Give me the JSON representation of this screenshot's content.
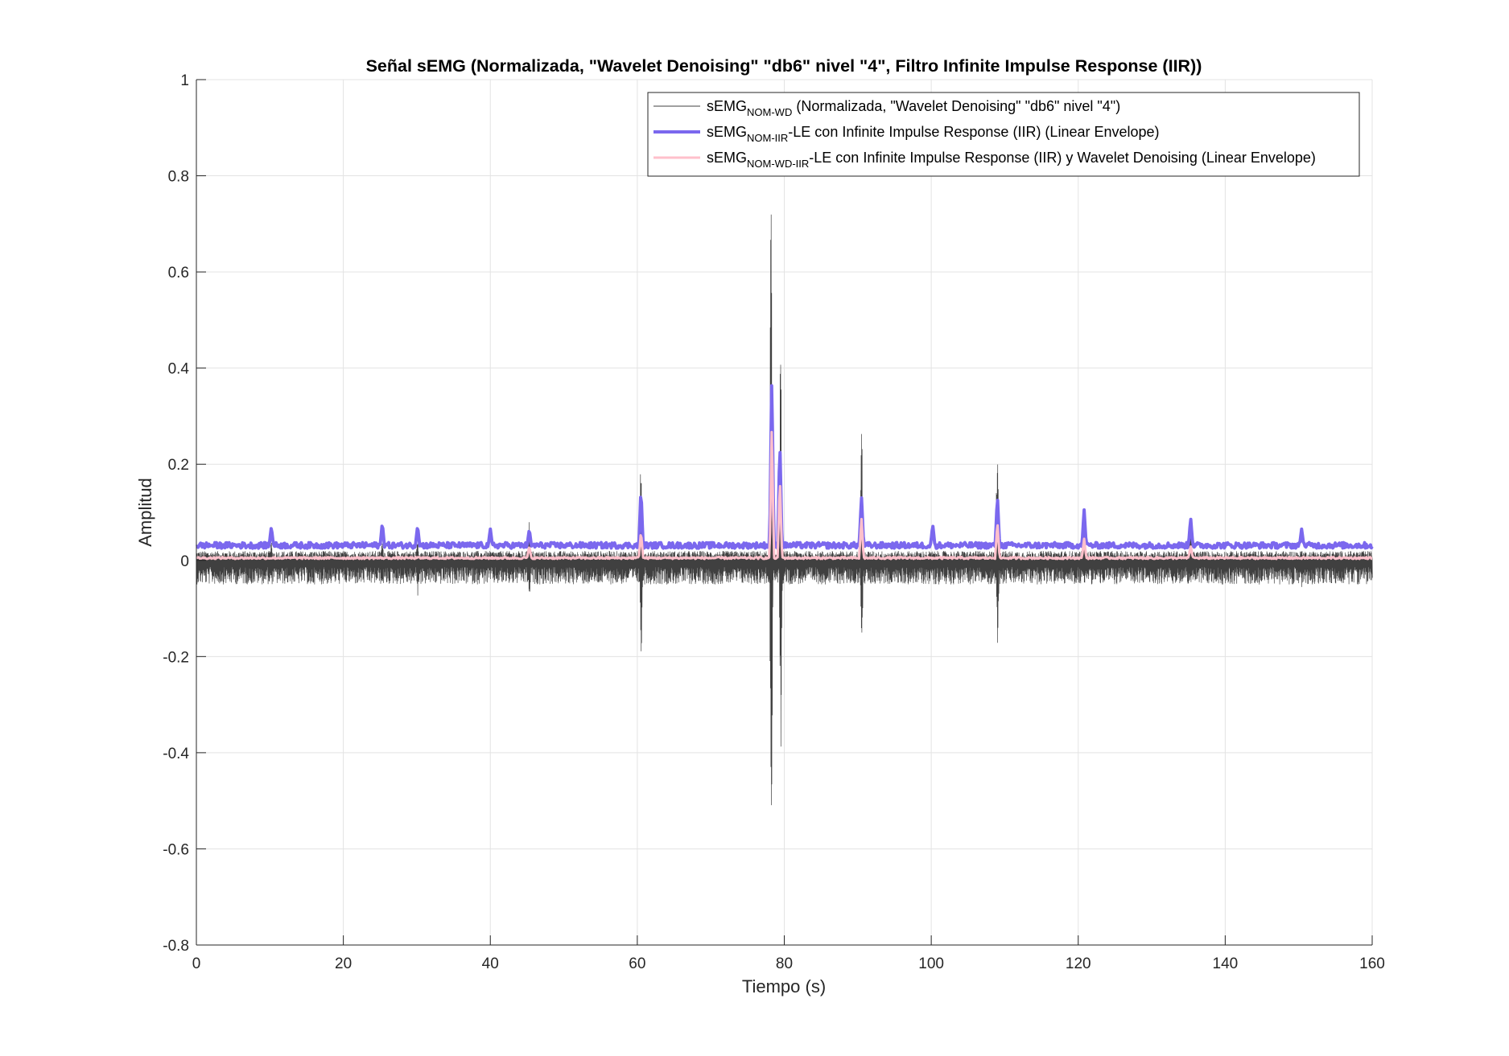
{
  "chart_data": {
    "type": "line",
    "title": "Señal sEMG (Normalizada, \"Wavelet Denoising\" \"db6\" nivel \"4\", Filtro Infinite Impulse Response (IIR))",
    "xlabel": "Tiempo (s)",
    "ylabel": "Amplitud",
    "xlim": [
      0,
      160
    ],
    "ylim": [
      -0.8,
      1
    ],
    "xticks": [
      0,
      20,
      40,
      60,
      80,
      100,
      120,
      140,
      160
    ],
    "xtick_labels": [
      "0",
      "20",
      "40",
      "60",
      "80",
      "100",
      "120",
      "140",
      "160"
    ],
    "yticks": [
      -0.8,
      -0.6,
      -0.4,
      -0.2,
      0,
      0.2,
      0.4,
      0.6,
      0.8,
      1
    ],
    "ytick_labels": [
      "-0.8",
      "-0.6",
      "-0.4",
      "-0.2",
      "0",
      "0.2",
      "0.4",
      "0.6",
      "0.8",
      "1"
    ],
    "grid": true,
    "legend_location": "top-right",
    "series": [
      {
        "name_main": "sEMG",
        "name_sub": "NOM-WD",
        "name_rest": " (Normalizada, \"Wavelet Denoising\" \"db6\" nivel \"4\")",
        "color": "#404040",
        "baseline_upper": 0.015,
        "baseline_lower": -0.04,
        "spikes": [
          {
            "t": 10.2,
            "max": 0.04,
            "min": -0.05
          },
          {
            "t": 15.5,
            "max": 0.02,
            "min": -0.06
          },
          {
            "t": 25.3,
            "max": 0.05,
            "min": -0.06
          },
          {
            "t": 30.1,
            "max": 0.05,
            "min": -0.08
          },
          {
            "t": 45.3,
            "max": 0.11,
            "min": -0.095
          },
          {
            "t": 60.5,
            "max": 0.25,
            "min": -0.22
          },
          {
            "t": 78.2,
            "max": 0.88,
            "min": -0.735
          },
          {
            "t": 79.5,
            "max": 0.5,
            "min": -0.42
          },
          {
            "t": 90.5,
            "max": 0.38,
            "min": -0.24
          },
          {
            "t": 109.0,
            "max": 0.32,
            "min": -0.22
          },
          {
            "t": 120.8,
            "max": 0.115,
            "min": -0.07
          },
          {
            "t": 135.3,
            "max": 0.115,
            "min": -0.06
          },
          {
            "t": 150.4,
            "max": 0.03,
            "min": -0.07
          }
        ]
      },
      {
        "name_main": "sEMG",
        "name_sub": "NOM-IIR",
        "name_rest": "-LE con Infinite Impulse Response (IIR) (Linear Envelope)",
        "color": "#7b68ee",
        "baseline": 0.03,
        "spikes": [
          {
            "t": 10.2,
            "max": 0.07
          },
          {
            "t": 25.3,
            "max": 0.078
          },
          {
            "t": 30.1,
            "max": 0.072
          },
          {
            "t": 40.0,
            "max": 0.065
          },
          {
            "t": 45.3,
            "max": 0.065
          },
          {
            "t": 60.5,
            "max": 0.148
          },
          {
            "t": 78.3,
            "max": 0.38
          },
          {
            "t": 79.4,
            "max": 0.245
          },
          {
            "t": 90.5,
            "max": 0.135
          },
          {
            "t": 100.2,
            "max": 0.075
          },
          {
            "t": 109.0,
            "max": 0.135
          },
          {
            "t": 120.8,
            "max": 0.105
          },
          {
            "t": 135.3,
            "max": 0.088
          },
          {
            "t": 150.4,
            "max": 0.065
          }
        ]
      },
      {
        "name_main": "sEMG",
        "name_sub": "NOM-WD-IIR",
        "name_rest": "-LE con Infinite Impulse Response (IIR) y Wavelet Denoising (Linear Envelope)",
        "color": "#ffc0cb",
        "baseline": 0.005,
        "spikes": [
          {
            "t": 45.3,
            "max": 0.03
          },
          {
            "t": 60.5,
            "max": 0.06
          },
          {
            "t": 78.3,
            "max": 0.28
          },
          {
            "t": 79.4,
            "max": 0.17
          },
          {
            "t": 90.5,
            "max": 0.09
          },
          {
            "t": 109.0,
            "max": 0.08
          },
          {
            "t": 120.8,
            "max": 0.045
          },
          {
            "t": 135.3,
            "max": 0.03
          }
        ]
      }
    ]
  }
}
